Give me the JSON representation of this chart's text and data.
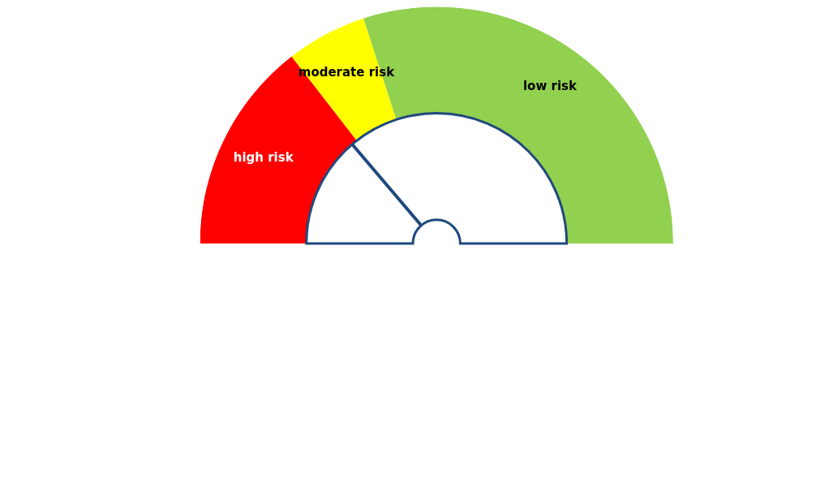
{
  "chart_data": {
    "type": "donut",
    "categories": [
      "high risk",
      "moderate risk",
      "low risk"
    ],
    "values": [
      29,
      11,
      60
    ],
    "colors": [
      "#ff0000",
      "#ffff00",
      "#92d050"
    ],
    "needle": "high risk"
  }
}
